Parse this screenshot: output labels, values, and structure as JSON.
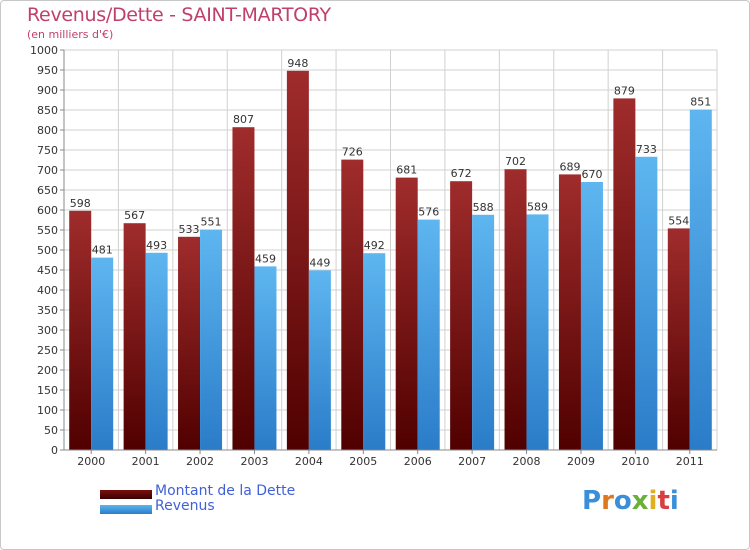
{
  "title": "Revenus/Dette - SAINT-MARTORY",
  "subtitle": "(en milliers d'€)",
  "colors": {
    "dette": "#7a1010",
    "revenus": "#3b9be0",
    "title": "#c0406a",
    "legend_text": "#4060d8"
  },
  "legend": [
    {
      "label": "Montant de la Dette",
      "color": "#5a0808"
    },
    {
      "label": "Revenus",
      "color": "#3b9be0"
    }
  ],
  "logo": {
    "text": "Proxiti"
  },
  "chart_data": {
    "type": "bar",
    "title": "Revenus/Dette - SAINT-MARTORY",
    "subtitle": "(en milliers d'€)",
    "xlabel": "",
    "ylabel": "",
    "ylim": [
      0,
      1000
    ],
    "yticks": [
      0,
      50,
      100,
      150,
      200,
      250,
      300,
      350,
      400,
      450,
      500,
      550,
      600,
      650,
      700,
      750,
      800,
      850,
      900,
      950,
      1000
    ],
    "grid": true,
    "legend_position": "bottom-left",
    "categories": [
      "2000",
      "2001",
      "2002",
      "2003",
      "2004",
      "2005",
      "2006",
      "2007",
      "2008",
      "2009",
      "2010",
      "2011"
    ],
    "series": [
      {
        "name": "Montant de la Dette",
        "values": [
          598,
          567,
          533,
          807,
          948,
          726,
          681,
          672,
          702,
          689,
          879,
          554
        ]
      },
      {
        "name": "Revenus",
        "values": [
          481,
          493,
          551,
          459,
          449,
          492,
          576,
          588,
          589,
          670,
          733,
          851
        ]
      }
    ]
  }
}
